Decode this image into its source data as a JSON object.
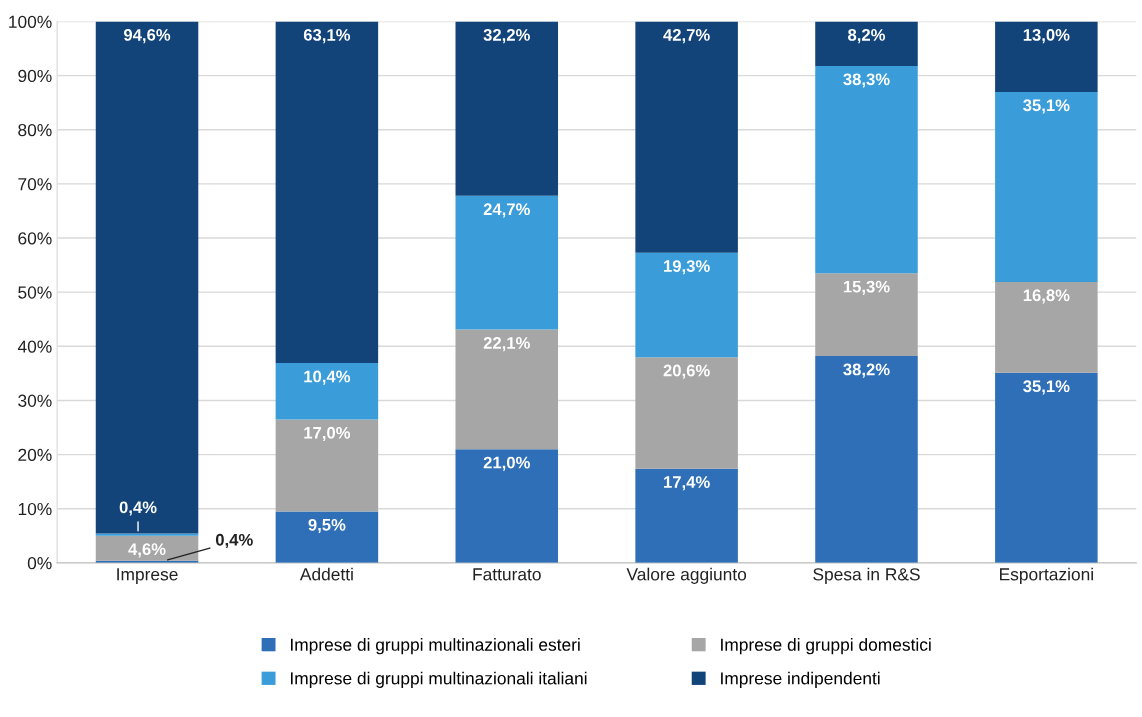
{
  "chart_data": {
    "type": "bar",
    "stacked": true,
    "categories": [
      "Imprese",
      "Addetti",
      "Fatturato",
      "Valore aggiunto",
      "Spesa in R&S",
      "Esportazioni"
    ],
    "series": [
      {
        "name": "Imprese di gruppi multinazionali esteri",
        "color": "#2e6fb7",
        "values": [
          0.4,
          9.5,
          21.0,
          17.4,
          38.2,
          35.1
        ],
        "value_labels": [
          "0,4%",
          "9,5%",
          "21,0%",
          "17,4%",
          "38,2%",
          "35,1%"
        ]
      },
      {
        "name": "Imprese di gruppi domestici",
        "color": "#a6a6a6",
        "values": [
          4.6,
          17.0,
          22.1,
          20.6,
          15.3,
          16.8
        ],
        "value_labels": [
          "4,6%",
          "17,0%",
          "22,1%",
          "20,6%",
          "15,3%",
          "16,8%"
        ]
      },
      {
        "name": "Imprese di gruppi multinazionali italiani",
        "color": "#3a9dd9",
        "values": [
          0.4,
          10.4,
          24.7,
          19.3,
          38.3,
          35.1
        ],
        "value_labels": [
          "0,4%",
          "10,4%",
          "24,7%",
          "19,3%",
          "38,3%",
          "35,1%"
        ]
      },
      {
        "name": "Imprese indipendenti",
        "color": "#12447a",
        "values": [
          94.6,
          63.1,
          32.2,
          42.7,
          8.2,
          13.0
        ],
        "value_labels": [
          "94,6%",
          "63,1%",
          "32,2%",
          "42,7%",
          "8,2%",
          "13,0%"
        ]
      }
    ],
    "ylim": [
      0,
      100
    ],
    "yticks": [
      {
        "value": 0,
        "label": "0%"
      },
      {
        "value": 10,
        "label": "10%"
      },
      {
        "value": 20,
        "label": "20%"
      },
      {
        "value": 30,
        "label": "30%"
      },
      {
        "value": 40,
        "label": "40%"
      },
      {
        "value": 50,
        "label": "50%"
      },
      {
        "value": 60,
        "label": "60%"
      },
      {
        "value": 70,
        "label": "70%"
      },
      {
        "value": 80,
        "label": "80%"
      },
      {
        "value": 90,
        "label": "90%"
      },
      {
        "value": 100,
        "label": "100%"
      }
    ],
    "grid": "y",
    "legend": "bottom"
  }
}
